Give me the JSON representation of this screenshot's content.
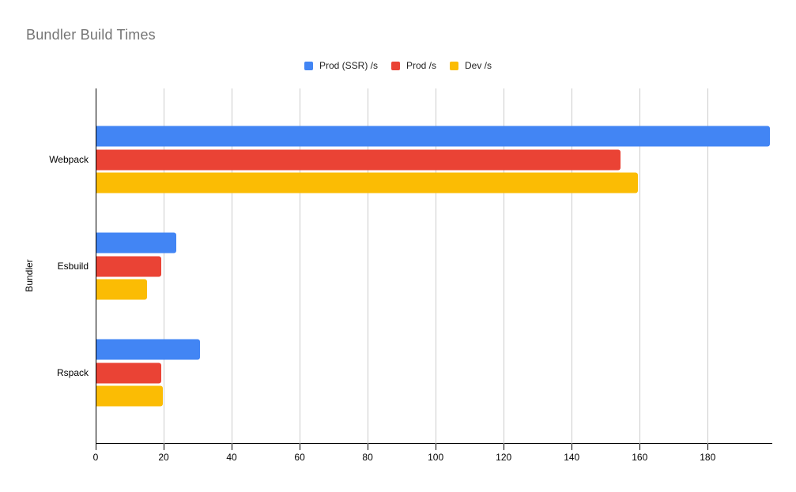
{
  "page": {
    "background": "#ffffff"
  },
  "chart_data": {
    "type": "bar",
    "orientation": "horizontal",
    "title": "Bundler Build Times",
    "title_color": "#757575",
    "xlabel": "",
    "ylabel": "Bundler",
    "categories": [
      "Webpack",
      "Esbuild",
      "Rspack"
    ],
    "series": [
      {
        "name": "Prod (SSR) /s",
        "color": "#4285F4",
        "values": [
          198.4,
          23.5,
          30.5
        ]
      },
      {
        "name": "Prod /s",
        "color": "#EA4335",
        "values": [
          154.4,
          19.1,
          19.0
        ]
      },
      {
        "name": "Dev /s",
        "color": "#FBBC04",
        "values": [
          159.5,
          15.0,
          19.6
        ]
      }
    ],
    "x_ticks": [
      0,
      20,
      40,
      60,
      80,
      100,
      120,
      140,
      160,
      180
    ],
    "xlim": [
      0,
      199
    ],
    "grid": true,
    "gridline_color": "#cccccc",
    "axis_color": "#000000",
    "tick_label_color": "#000000",
    "legend_position": "top-center"
  }
}
